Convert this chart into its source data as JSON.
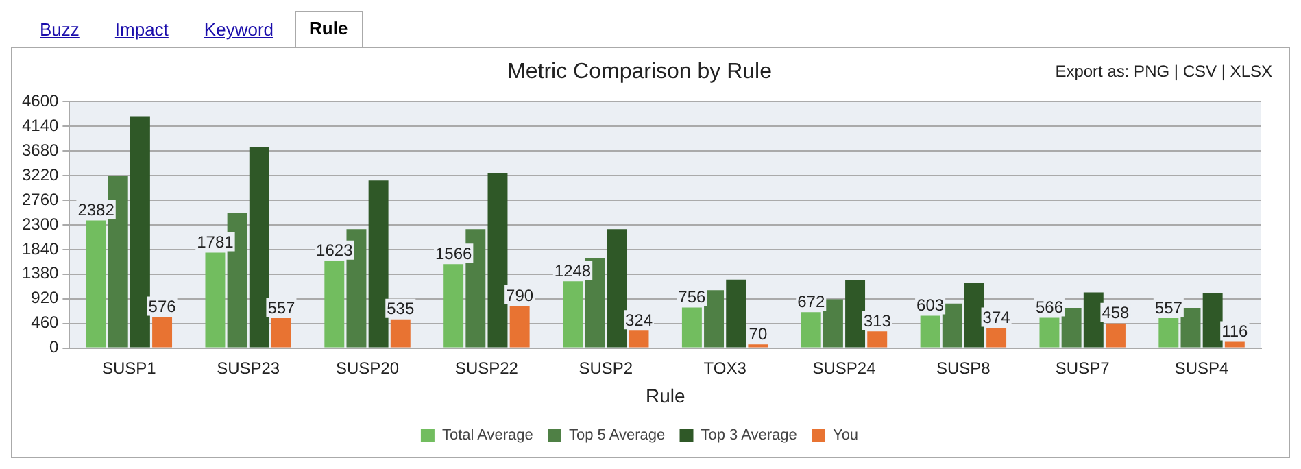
{
  "chart_data": {
    "type": "bar",
    "title": "Metric Comparison by Rule",
    "xlabel": "Rule",
    "annotations": [
      "Buzz",
      "Impact",
      "Keyword",
      "Rule",
      "Export as: PNG | CSV | XLSX"
    ],
    "categories": [
      "SUSP1",
      "SUSP23",
      "SUSP20",
      "SUSP22",
      "SUSP2",
      "TOX3",
      "SUSP24",
      "SUSP8",
      "SUSP7",
      "SUSP4"
    ],
    "series": [
      {
        "name": "Total Average",
        "color": "#72bd5f",
        "values": [
          2382,
          1781,
          1623,
          1566,
          1248,
          756,
          672,
          603,
          566,
          557
        ],
        "value_labels": [
          "2382",
          "1781",
          "1623",
          "1566",
          "1248",
          "756",
          "672",
          "603",
          "566",
          "557"
        ]
      },
      {
        "name": "Top 5 Average",
        "color": "#4f8045",
        "values": [
          3210,
          2520,
          2220,
          2220,
          1680,
          1080,
          910,
          830,
          750,
          750
        ]
      },
      {
        "name": "Top 3 Average",
        "color": "#2f5827",
        "values": [
          4330,
          3750,
          3130,
          3270,
          2220,
          1280,
          1270,
          1210,
          1040,
          1030
        ]
      },
      {
        "name": "You",
        "color": "#e87332",
        "values": [
          576,
          557,
          535,
          790,
          324,
          70,
          313,
          374,
          458,
          116
        ],
        "value_labels": [
          "576",
          "557",
          "535",
          "790",
          "324",
          "70",
          "313",
          "374",
          "458",
          "116"
        ]
      }
    ],
    "ylim": [
      0,
      4600
    ],
    "yticks": [
      0,
      460,
      920,
      1380,
      1840,
      2300,
      2760,
      3220,
      3680,
      4140,
      4600
    ],
    "grid": "y",
    "legend": "bottom"
  }
}
